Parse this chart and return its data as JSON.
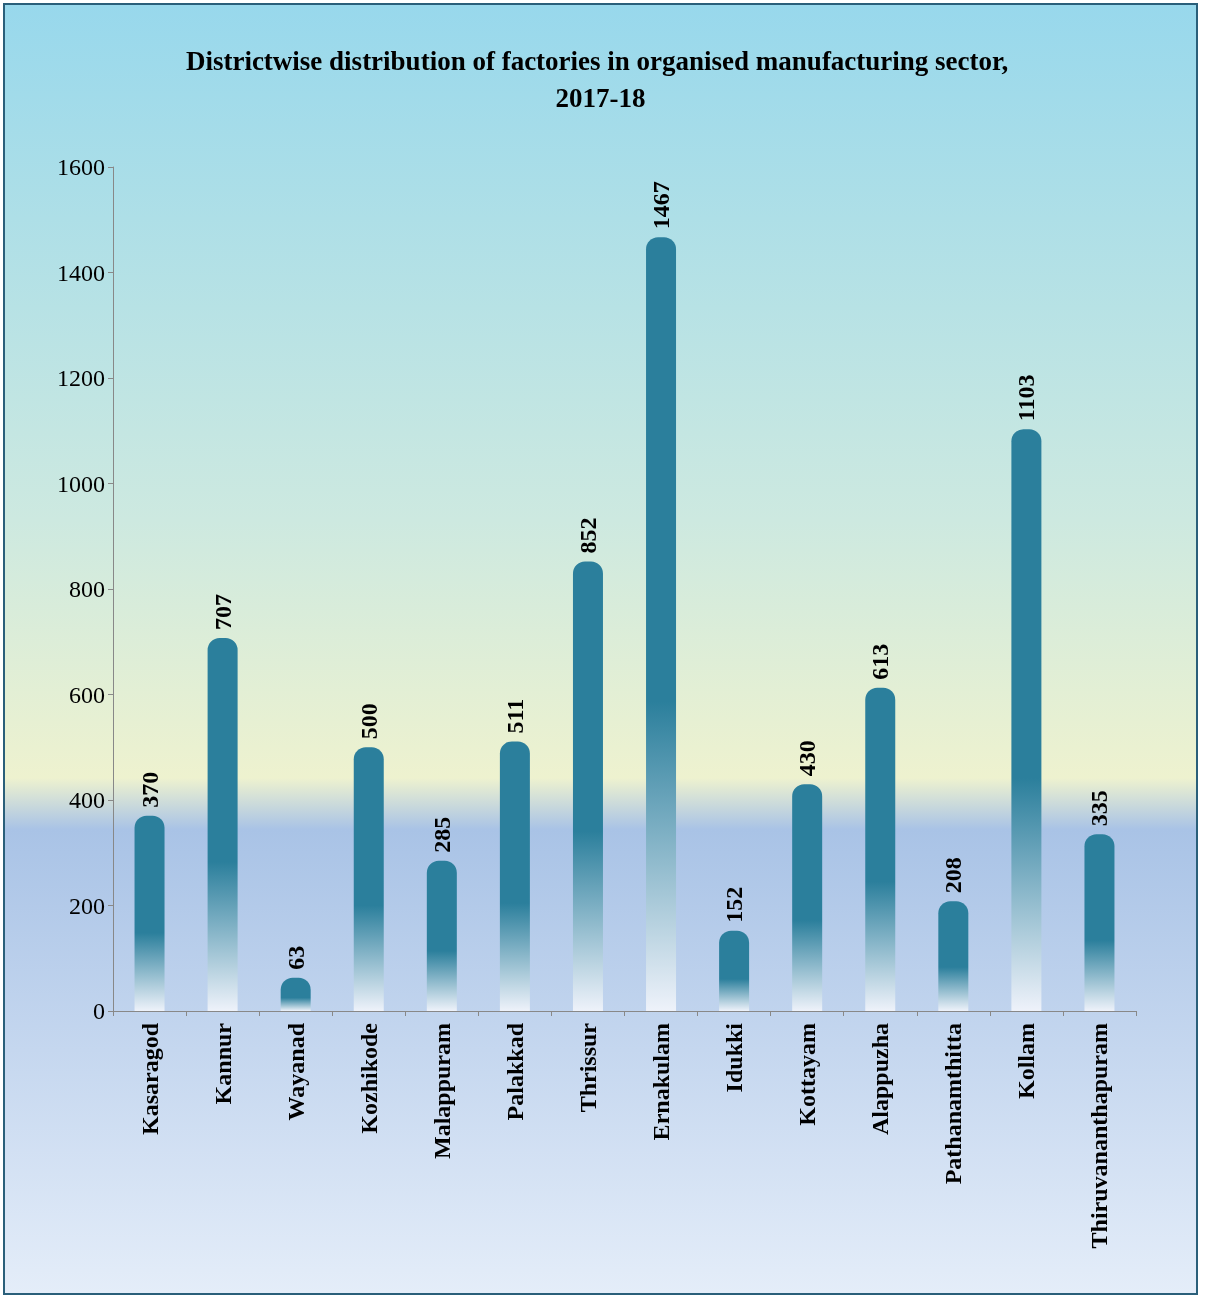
{
  "chart_data": {
    "type": "bar",
    "title": "Districtwise distribution of factories in organised manufacturing sector, 2017-18",
    "categories": [
      "Kasaragod",
      "Kannur",
      "Wayanad",
      "Kozhikode",
      "Malappuram",
      "Palakkad",
      "Thrissur",
      "Ernakulam",
      "Idukki",
      "Kottayam",
      "Alappuzha",
      "Pathanamthitta",
      "Kollam",
      "Thiruvananthapuram"
    ],
    "values": [
      370,
      707,
      63,
      500,
      285,
      511,
      852,
      1467,
      152,
      430,
      613,
      208,
      1103,
      335
    ],
    "color": "#2b7f9c",
    "ylim": [
      0,
      1600
    ],
    "yticks": [
      0,
      200,
      400,
      600,
      800,
      1000,
      1200,
      1400,
      1600
    ],
    "data_labels": true
  }
}
